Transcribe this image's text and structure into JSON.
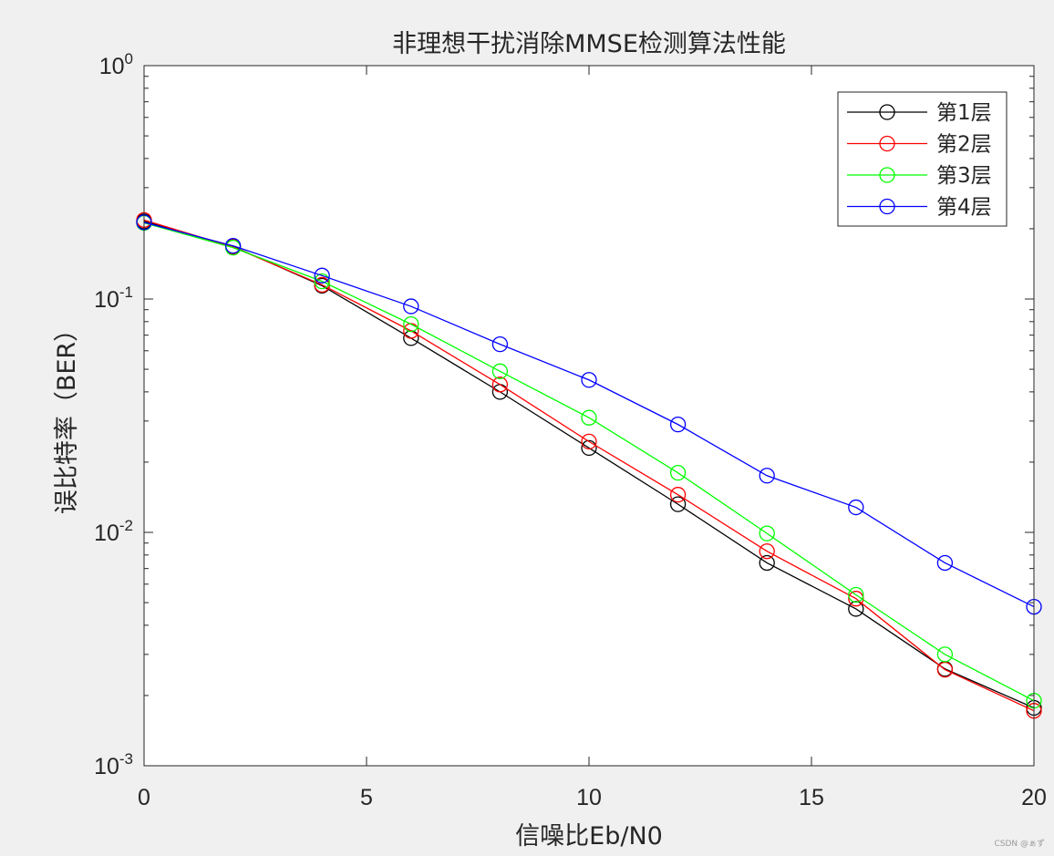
{
  "chart_data": {
    "type": "line",
    "title": "非理想干扰消除MMSE检测算法性能",
    "xlabel": "信噪比Eb/N0",
    "ylabel": "误比特率（BER）",
    "xlim": [
      0,
      20
    ],
    "ylim": [
      0.001,
      1
    ],
    "yscale": "log",
    "xticks": [
      0,
      5,
      10,
      15,
      20
    ],
    "yticks": [
      {
        "value": 1,
        "base": "10",
        "exp": "0"
      },
      {
        "value": 0.1,
        "base": "10",
        "exp": "-1"
      },
      {
        "value": 0.01,
        "base": "10",
        "exp": "-2"
      },
      {
        "value": 0.001,
        "base": "10",
        "exp": "-3"
      }
    ],
    "grid": false,
    "legend_position": "top-right",
    "marker": "circle",
    "x": [
      0,
      2,
      4,
      6,
      8,
      10,
      12,
      14,
      16,
      18,
      20
    ],
    "series": [
      {
        "name": "第1层",
        "color": "#000000",
        "values": [
          0.215,
          0.168,
          0.114,
          0.068,
          0.04,
          0.023,
          0.0132,
          0.0074,
          0.0047,
          0.0026,
          0.00177
        ]
      },
      {
        "name": "第2层",
        "color": "#ff0000",
        "values": [
          0.218,
          0.167,
          0.115,
          0.073,
          0.043,
          0.0245,
          0.0145,
          0.0083,
          0.0052,
          0.00258,
          0.00172
        ]
      },
      {
        "name": "第3层",
        "color": "#00ff00",
        "values": [
          0.212,
          0.166,
          0.119,
          0.078,
          0.049,
          0.031,
          0.018,
          0.0099,
          0.0054,
          0.003,
          0.0019
        ]
      },
      {
        "name": "第4层",
        "color": "#0000ff",
        "values": [
          0.213,
          0.169,
          0.126,
          0.093,
          0.064,
          0.045,
          0.029,
          0.0175,
          0.0128,
          0.0074,
          0.0048
        ]
      }
    ]
  },
  "watermark": "CSDN @ぁず"
}
